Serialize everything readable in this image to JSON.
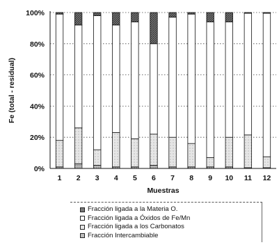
{
  "chart_data": {
    "type": "bar",
    "stacked": true,
    "normalized": true,
    "title": "",
    "xlabel": "Muestras",
    "ylabel": "Fe (total - residual)",
    "ylim": [
      0,
      100
    ],
    "y_ticks": [
      "0%",
      "20%",
      "40%",
      "60%",
      "80%",
      "100%"
    ],
    "grid": true,
    "legend_position": "bottom",
    "categories": [
      "1",
      "2",
      "3",
      "4",
      "5",
      "6",
      "7",
      "8",
      "9",
      "10",
      "11",
      "12"
    ],
    "series": [
      {
        "name": "Fracción Intercambiable",
        "color": "#bdbdbd",
        "values": [
          1,
          3,
          2,
          1,
          1,
          2,
          1,
          1,
          1,
          1,
          0.5,
          0.5
        ]
      },
      {
        "name": "Fracción ligada a los Carbonatos",
        "color": "#e6e6e6",
        "values": [
          17,
          23,
          10,
          22,
          18,
          20,
          19,
          15,
          6,
          19,
          21,
          7
        ]
      },
      {
        "name": "Fracción ligada a Óxidos de Fe/Mn",
        "color": "#ffffff",
        "values": [
          81,
          66,
          86,
          69,
          75,
          58,
          77,
          83,
          87,
          74,
          78,
          92
        ]
      },
      {
        "name": "Fracción ligada a la Materia O.",
        "color": "#7a7a7a",
        "values": [
          1,
          8,
          2,
          8,
          6,
          20,
          3,
          1,
          6,
          6,
          0.5,
          0.5
        ]
      }
    ]
  },
  "legend": {
    "items": [
      {
        "label": "Fracción ligada a la Materia O.",
        "color": "#7a7a7a"
      },
      {
        "label": "Fracción ligada a Óxidos de Fe/Mn",
        "color": "#ffffff"
      },
      {
        "label": "Fracción ligada a los Carbonatos",
        "color": "#e6e6e6"
      },
      {
        "label": "Fracción Intercambiable",
        "color": "#bdbdbd"
      }
    ]
  }
}
